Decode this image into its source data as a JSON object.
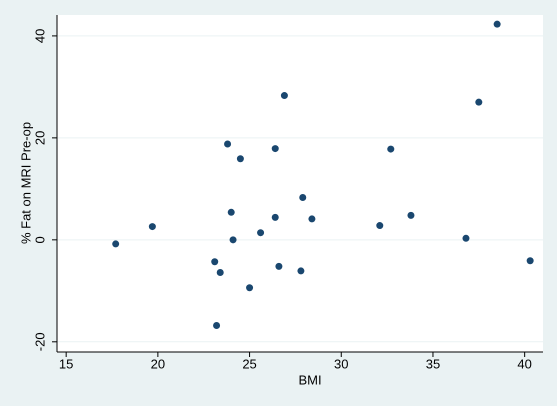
{
  "chart_data": {
    "type": "scatter",
    "x_label": "BMI",
    "y_label": "% Fat on MRI Pre-op",
    "x": [
      17.7,
      19.7,
      23.1,
      23.2,
      23.4,
      23.8,
      24.0,
      24.1,
      24.5,
      25.0,
      25.6,
      26.4,
      26.4,
      26.6,
      26.9,
      27.8,
      27.9,
      28.4,
      32.1,
      32.7,
      33.8,
      36.8,
      37.5,
      38.5,
      40.3
    ],
    "values": [
      -0.8,
      2.6,
      -4.3,
      -16.8,
      -6.4,
      18.8,
      5.4,
      0.0,
      15.9,
      -9.4,
      1.4,
      17.9,
      4.4,
      -5.2,
      28.3,
      -6.1,
      8.3,
      4.1,
      2.8,
      17.8,
      4.8,
      0.3,
      27.0,
      42.3,
      -4.1
    ],
    "color": "#1a476f",
    "xlim": [
      14.5,
      41
    ],
    "ylim": [
      -22,
      44.1
    ],
    "xticks": [
      15,
      20,
      25,
      30,
      35,
      40
    ],
    "yticks": [
      -20,
      0,
      20,
      40
    ],
    "grid": true
  }
}
